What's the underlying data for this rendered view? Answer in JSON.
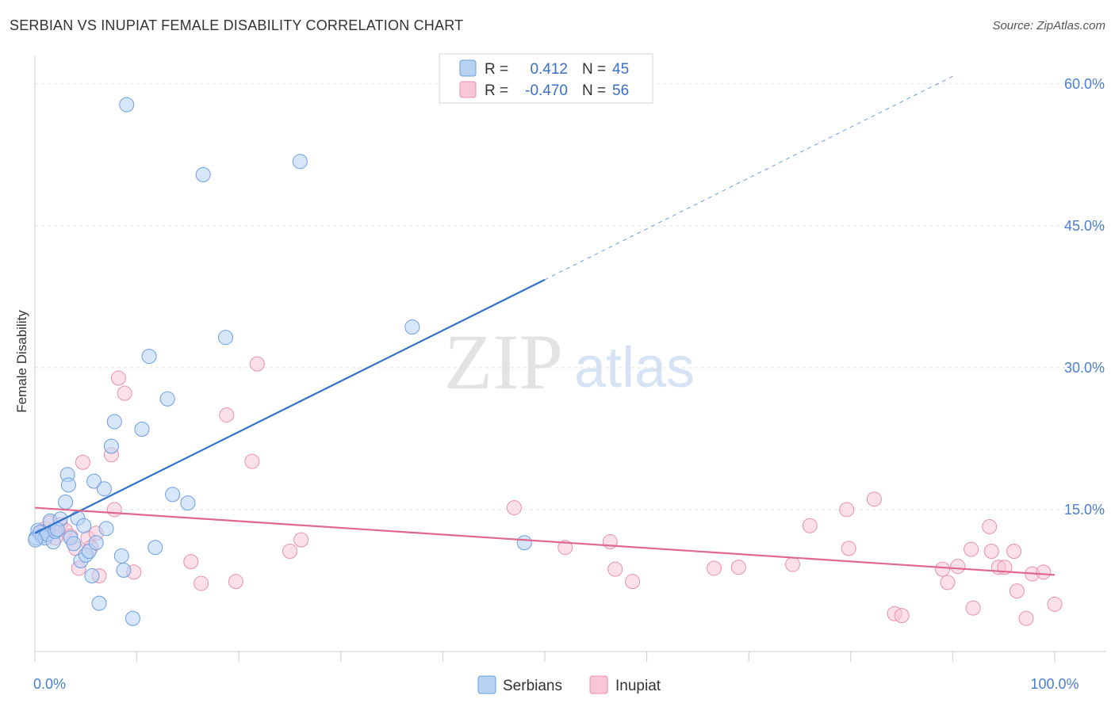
{
  "title": "SERBIAN VS INUPIAT FEMALE DISABILITY CORRELATION CHART",
  "source": "Source: ZipAtlas.com",
  "watermark": {
    "zip": "ZIP",
    "atlas": "atlas"
  },
  "colors": {
    "serbians_fill": "#b8d2f4",
    "serbians_stroke": "#6a9ee0",
    "serbians_line": "#2f72cc",
    "inupiat_fill": "#f8c6d6",
    "inupiat_stroke": "#e890ae",
    "inupiat_line": "#e06890",
    "grid": "#e2e2e2",
    "tick_text": "#4a7fd0"
  },
  "legend": {
    "r_label": "R =",
    "n_label": "N =",
    "serbians": {
      "r": "0.412",
      "n": "45"
    },
    "inupiat": {
      "r": "-0.470",
      "n": "56"
    }
  },
  "chart_data": {
    "type": "scatter",
    "title": "SERBIAN VS INUPIAT FEMALE DISABILITY CORRELATION CHART",
    "xlabel": "",
    "ylabel": "Female Disability",
    "xlim": [
      0,
      100
    ],
    "ylim": [
      0,
      63
    ],
    "x_tick_labels": [
      {
        "value": 0,
        "label": "0.0%"
      },
      {
        "value": 100,
        "label": "100.0%"
      }
    ],
    "y_ticks": [
      {
        "value": 15,
        "label": "15.0%"
      },
      {
        "value": 30,
        "label": "30.0%"
      },
      {
        "value": 45,
        "label": "45.0%"
      },
      {
        "value": 60,
        "label": "60.0%"
      }
    ],
    "grid": true,
    "legend_position": "top-center",
    "series": [
      {
        "name": "Serbians",
        "r": 0.412,
        "n": 45,
        "trend": {
          "x0": 0,
          "y0": 12.5,
          "x1": 50,
          "y1": 39.3,
          "dash_to_x": 90,
          "dash_to_y": 60.8
        },
        "points": [
          [
            0.1,
            12.0
          ],
          [
            0.3,
            12.8
          ],
          [
            0.5,
            12.6
          ],
          [
            0.7,
            12.2
          ],
          [
            1.0,
            12.0
          ],
          [
            1.2,
            12.4
          ],
          [
            1.5,
            13.8
          ],
          [
            1.8,
            11.6
          ],
          [
            2.0,
            12.7
          ],
          [
            2.5,
            14.0
          ],
          [
            3.0,
            15.8
          ],
          [
            3.2,
            18.7
          ],
          [
            3.3,
            17.6
          ],
          [
            3.5,
            12.0
          ],
          [
            3.8,
            11.4
          ],
          [
            4.2,
            14.1
          ],
          [
            4.5,
            9.6
          ],
          [
            4.8,
            13.3
          ],
          [
            5.0,
            10.2
          ],
          [
            5.3,
            10.6
          ],
          [
            5.6,
            8.0
          ],
          [
            5.8,
            18.0
          ],
          [
            6.0,
            11.5
          ],
          [
            6.3,
            5.1
          ],
          [
            6.8,
            17.2
          ],
          [
            7.0,
            13.0
          ],
          [
            7.5,
            21.7
          ],
          [
            7.8,
            24.3
          ],
          [
            8.5,
            10.1
          ],
          [
            8.7,
            8.6
          ],
          [
            9.0,
            57.8
          ],
          [
            9.6,
            3.5
          ],
          [
            10.5,
            23.5
          ],
          [
            11.2,
            31.2
          ],
          [
            11.8,
            11.0
          ],
          [
            13.0,
            26.7
          ],
          [
            13.5,
            16.6
          ],
          [
            15.0,
            15.7
          ],
          [
            16.5,
            50.4
          ],
          [
            18.7,
            33.2
          ],
          [
            26.0,
            51.8
          ],
          [
            37.0,
            34.3
          ],
          [
            48.0,
            11.5
          ],
          [
            0.05,
            11.8
          ],
          [
            2.2,
            12.9
          ]
        ]
      },
      {
        "name": "Inupiat",
        "r": -0.47,
        "n": 56,
        "trend": {
          "x0": 0,
          "y0": 15.2,
          "x1": 100,
          "y1": 8.1
        },
        "points": [
          [
            0.5,
            12.5
          ],
          [
            1.0,
            13.0
          ],
          [
            1.5,
            13.6
          ],
          [
            2.0,
            12.0
          ],
          [
            2.5,
            13.4
          ],
          [
            3.0,
            12.8
          ],
          [
            3.5,
            12.2
          ],
          [
            4.0,
            10.9
          ],
          [
            4.3,
            8.8
          ],
          [
            4.7,
            20.0
          ],
          [
            5.2,
            12.0
          ],
          [
            5.5,
            11.0
          ],
          [
            6.0,
            12.5
          ],
          [
            6.3,
            8.0
          ],
          [
            7.5,
            20.8
          ],
          [
            7.8,
            15.0
          ],
          [
            8.2,
            28.9
          ],
          [
            8.8,
            27.3
          ],
          [
            9.7,
            8.4
          ],
          [
            15.3,
            9.5
          ],
          [
            16.3,
            7.2
          ],
          [
            18.8,
            25.0
          ],
          [
            19.7,
            7.4
          ],
          [
            21.3,
            20.1
          ],
          [
            21.8,
            30.4
          ],
          [
            25.0,
            10.6
          ],
          [
            26.1,
            11.8
          ],
          [
            47.0,
            15.2
          ],
          [
            52.0,
            11.0
          ],
          [
            56.4,
            11.6
          ],
          [
            56.9,
            8.7
          ],
          [
            58.6,
            7.4
          ],
          [
            66.6,
            8.8
          ],
          [
            69.0,
            8.9
          ],
          [
            74.3,
            9.2
          ],
          [
            76.0,
            13.3
          ],
          [
            79.6,
            15.0
          ],
          [
            79.8,
            10.9
          ],
          [
            82.3,
            16.1
          ],
          [
            84.3,
            4.0
          ],
          [
            85.0,
            3.8
          ],
          [
            89.0,
            8.7
          ],
          [
            89.5,
            7.3
          ],
          [
            90.5,
            9.0
          ],
          [
            91.8,
            10.8
          ],
          [
            92.0,
            4.6
          ],
          [
            93.6,
            13.2
          ],
          [
            93.8,
            10.6
          ],
          [
            94.5,
            8.9
          ],
          [
            95.1,
            8.9
          ],
          [
            96.0,
            10.6
          ],
          [
            96.3,
            6.4
          ],
          [
            97.2,
            3.5
          ],
          [
            97.8,
            8.2
          ],
          [
            98.9,
            8.4
          ],
          [
            100.0,
            5.0
          ]
        ]
      }
    ]
  }
}
